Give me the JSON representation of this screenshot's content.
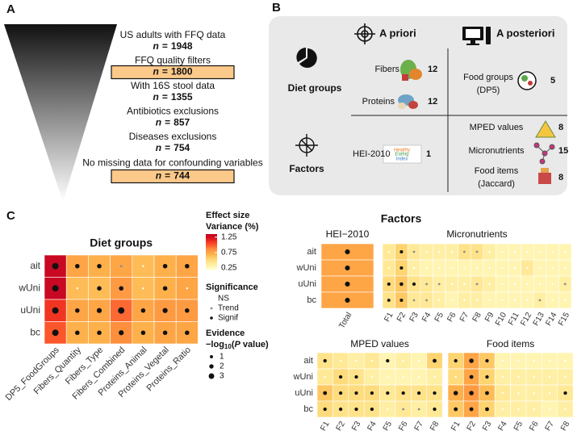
{
  "panel_a": {
    "label": "A",
    "n_symbol": "n",
    "equals": "=",
    "steps": [
      {
        "text": "US adults with FFQ data",
        "n": 1948
      },
      {
        "text": "FFQ quality filters",
        "n": 1800
      },
      {
        "text": "With 16S stool data",
        "n": 1355
      },
      {
        "text": "Antibiotics exclusions",
        "n": 857
      },
      {
        "text": "Diseases exclusions",
        "n": 754
      },
      {
        "text": "No missing data for confounding variables",
        "n": 744
      }
    ]
  },
  "panel_b": {
    "label": "B",
    "columns": [
      "A priori",
      "A posteriori"
    ],
    "rows": [
      "Diet groups",
      "Factors"
    ],
    "diet_priori": [
      {
        "label": "Fibers",
        "n": 12
      },
      {
        "label": "Proteins",
        "n": 12
      }
    ],
    "diet_posteriori": {
      "lines": [
        "Food groups",
        "(DP5)"
      ],
      "n": 5
    },
    "factors_priori": {
      "label": "HEI-2010",
      "n": 1,
      "logo": [
        "Healthy",
        "Eating",
        "Index"
      ]
    },
    "factors_posteriori": [
      {
        "lines": [
          "MPED values"
        ],
        "n": 8
      },
      {
        "lines": [
          "Micronutrients"
        ],
        "n": 15
      },
      {
        "lines": [
          "Food items",
          "(Jaccard)"
        ],
        "n": 8
      }
    ]
  },
  "panel_c": {
    "label": "C",
    "factors_title": "Factors"
  },
  "legend": {
    "effect_title": [
      "Effect size",
      "Variance (%)"
    ],
    "clim": [
      0.2,
      1.35
    ],
    "ticks": [
      0.25,
      0.75,
      1.25
    ],
    "significance_title": "Significance",
    "significance_levels": [
      "NS",
      "Trend",
      "Signif"
    ],
    "evidence_title": "Evidence",
    "evidence_axis": [
      "−log",
      "10",
      "(",
      "P",
      " value)"
    ],
    "evidence_sizes": [
      1,
      2,
      3
    ]
  },
  "chart_data": [
    {
      "type": "heatmap",
      "title": "Diet groups",
      "rows": [
        "ait",
        "wUni",
        "uUni",
        "bc"
      ],
      "columns": [
        "DP5_FoodGroups",
        "Fibers_Quantity",
        "Fibers_Type",
        "Fibers_Combined",
        "Proteins_Animal",
        "Proteins_Vegetal",
        "Proteins_Ratio"
      ],
      "values": [
        [
          1.3,
          0.75,
          0.7,
          0.75,
          0.65,
          0.7,
          0.75
        ],
        [
          1.3,
          0.65,
          0.65,
          0.8,
          0.65,
          0.7,
          0.75
        ],
        [
          1.1,
          0.75,
          0.75,
          0.95,
          0.75,
          0.8,
          0.8
        ],
        [
          1.0,
          0.7,
          0.7,
          0.85,
          0.7,
          0.75,
          0.75
        ]
      ],
      "evidence": [
        [
          3,
          1.6,
          1.6,
          1.1,
          0.5,
          1.6,
          1.6
        ],
        [
          3,
          0.5,
          1.6,
          1.6,
          0.5,
          1.6,
          0.5
        ],
        [
          3,
          1.6,
          2,
          3,
          1.6,
          2,
          1.6
        ],
        [
          3,
          1.6,
          1.6,
          2,
          1.6,
          1.6,
          1.6
        ]
      ]
    },
    {
      "type": "heatmap",
      "title": "HEI−2010",
      "rows": [
        "ait",
        "wUni",
        "uUni",
        "bc"
      ],
      "columns": [
        "Total"
      ],
      "values": [
        [
          0.75
        ],
        [
          0.75
        ],
        [
          0.75
        ],
        [
          0.75
        ]
      ],
      "evidence": [
        [
          2.5
        ],
        [
          2.5
        ],
        [
          2.5
        ],
        [
          2.5
        ]
      ]
    },
    {
      "type": "heatmap",
      "title": "Micronutrients",
      "columns": [
        "F1",
        "F2",
        "F3",
        "F4",
        "F5",
        "F6",
        "F7",
        "F8",
        "F9",
        "F10",
        "F11",
        "F12",
        "F13",
        "F14",
        "F15"
      ],
      "values": [
        [
          0.4,
          0.55,
          0.4,
          0.35,
          0.35,
          0.35,
          0.45,
          0.45,
          0.35,
          0.3,
          0.3,
          0.3,
          0.3,
          0.3,
          0.3
        ],
        [
          0.4,
          0.55,
          0.35,
          0.3,
          0.3,
          0.3,
          0.3,
          0.3,
          0.3,
          0.3,
          0.3,
          0.4,
          0.3,
          0.3,
          0.3
        ],
        [
          0.5,
          0.6,
          0.45,
          0.4,
          0.35,
          0.35,
          0.35,
          0.4,
          0.35,
          0.3,
          0.3,
          0.3,
          0.3,
          0.3,
          0.35
        ],
        [
          0.45,
          0.6,
          0.4,
          0.4,
          0.35,
          0.3,
          0.35,
          0.35,
          0.3,
          0.3,
          0.3,
          0.3,
          0.35,
          0.3,
          0.3
        ]
      ],
      "evidence": [
        [
          0.5,
          1.8,
          1.1,
          0.5,
          0.5,
          0.5,
          1.1,
          1.1,
          0.5,
          0.5,
          0.5,
          0.5,
          0.5,
          0.5,
          0.5
        ],
        [
          0.5,
          1.8,
          0.5,
          0.5,
          0.5,
          0.5,
          0.5,
          0.5,
          0.5,
          0.5,
          0.5,
          0.5,
          0.5,
          0.5,
          0.5
        ],
        [
          1.8,
          2.2,
          1.8,
          1.1,
          1.1,
          0.5,
          0.5,
          1.1,
          0.5,
          0.5,
          0.5,
          0.5,
          0.5,
          0.5,
          1.1
        ],
        [
          1.6,
          1.8,
          1.1,
          1.1,
          0.5,
          0.5,
          0.5,
          0.5,
          0.5,
          0.5,
          0.5,
          0.5,
          1.1,
          0.5,
          0.5
        ]
      ]
    },
    {
      "type": "heatmap",
      "title": "MPED values",
      "rows": [
        "ait",
        "wUni",
        "uUni",
        "bc"
      ],
      "columns": [
        "F1",
        "F2",
        "F3",
        "F4",
        "F5",
        "F6",
        "F7",
        "F8"
      ],
      "values": [
        [
          0.45,
          0.4,
          0.35,
          0.4,
          0.3,
          0.35,
          0.3,
          0.55
        ],
        [
          0.4,
          0.5,
          0.45,
          0.35,
          0.3,
          0.3,
          0.3,
          0.35
        ],
        [
          0.6,
          0.5,
          0.5,
          0.5,
          0.4,
          0.45,
          0.45,
          0.45
        ],
        [
          0.5,
          0.45,
          0.45,
          0.45,
          0.35,
          0.4,
          0.35,
          0.4
        ]
      ],
      "evidence": [
        [
          1.6,
          0.5,
          0.5,
          0.5,
          1.6,
          0.5,
          0.5,
          2
        ],
        [
          0.5,
          1.6,
          1.6,
          0.5,
          0.5,
          0.5,
          0.5,
          0.5
        ],
        [
          2,
          1.6,
          1.6,
          1.6,
          1.6,
          1.6,
          1.6,
          1.6
        ],
        [
          1.6,
          1.6,
          1.6,
          1.6,
          0.5,
          1.1,
          1.1,
          1.6
        ]
      ]
    },
    {
      "type": "heatmap",
      "title": "Food items",
      "columns": [
        "F1",
        "F2",
        "F3",
        "F4",
        "F5",
        "F6",
        "F7",
        "F8"
      ],
      "values": [
        [
          0.55,
          0.75,
          0.6,
          0.3,
          0.3,
          0.3,
          0.3,
          0.3
        ],
        [
          0.5,
          0.75,
          0.55,
          0.35,
          0.35,
          0.35,
          0.35,
          0.35
        ],
        [
          0.7,
          0.8,
          0.65,
          0.4,
          0.35,
          0.35,
          0.35,
          0.4
        ],
        [
          0.6,
          0.75,
          0.55,
          0.35,
          0.35,
          0.35,
          0.3,
          0.35
        ]
      ],
      "evidence": [
        [
          1.6,
          2.5,
          1.6,
          0.5,
          0.5,
          0.5,
          0.5,
          0.5
        ],
        [
          0.5,
          2,
          1.6,
          0.5,
          0.5,
          0.5,
          0.5,
          0.5
        ],
        [
          2.5,
          2.5,
          2,
          0.5,
          0.5,
          0.5,
          0.5,
          1.6
        ],
        [
          2,
          2,
          2,
          0.5,
          0.5,
          0.5,
          0.5,
          0.5
        ]
      ]
    }
  ]
}
